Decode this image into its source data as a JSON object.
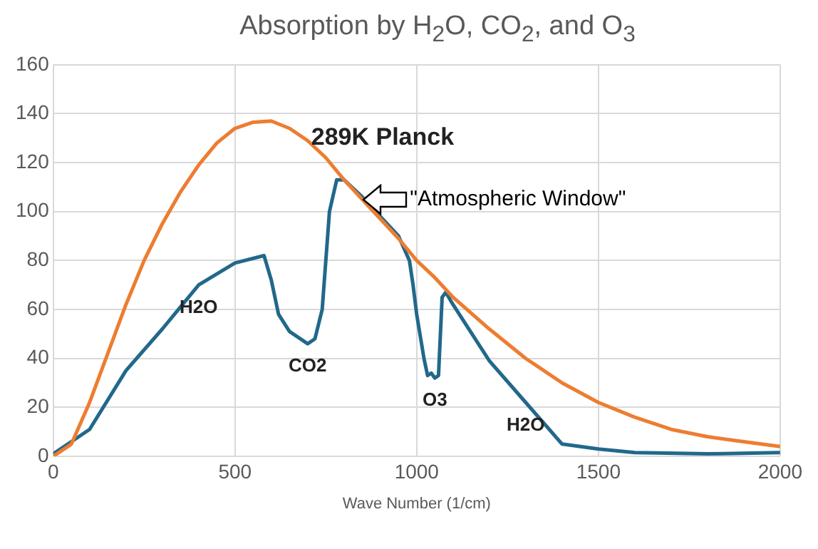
{
  "chart_data": {
    "type": "line",
    "title": "Absorption by H$_{2}$O, CO$_{2}$, and O$_{3}$",
    "xlabel": "Wave Number (1/cm)",
    "xlim": [
      0,
      2000
    ],
    "xticks": [
      0,
      500,
      1000,
      1500,
      2000
    ],
    "ylim": [
      0,
      160
    ],
    "yticks": [
      0,
      20,
      40,
      60,
      80,
      100,
      120,
      140,
      160
    ],
    "grid": true,
    "legend": false,
    "marker": "none",
    "line_style": "solid",
    "series": [
      {
        "name": "289K Planck",
        "color": "#ed7d31",
        "x": [
          0,
          50,
          100,
          150,
          200,
          250,
          300,
          350,
          400,
          450,
          500,
          550,
          600,
          650,
          700,
          750,
          800,
          850,
          900,
          950,
          1000,
          1050,
          1100,
          1200,
          1300,
          1400,
          1500,
          1600,
          1700,
          1800,
          1900,
          2000
        ],
        "values": [
          0,
          5,
          22,
          42,
          62,
          80,
          95,
          108,
          119,
          128,
          134,
          136.5,
          137,
          134,
          129,
          122,
          113,
          105,
          97,
          89,
          80,
          73,
          65,
          52,
          40,
          30,
          22,
          16,
          11,
          8,
          6,
          4
        ]
      },
      {
        "color": "#22688a",
        "x": [
          0,
          100,
          200,
          300,
          400,
          500,
          580,
          600,
          620,
          650,
          700,
          720,
          740,
          760,
          780,
          800,
          850,
          900,
          950,
          980,
          990,
          1000,
          1020,
          1030,
          1040,
          1050,
          1060,
          1070,
          1080,
          1100,
          1200,
          1300,
          1400,
          1500,
          1600,
          1800,
          2000
        ],
        "values": [
          1,
          11,
          35,
          52,
          70,
          79,
          82,
          72,
          58,
          51,
          46,
          48,
          60,
          100,
          113,
          113,
          106,
          98,
          90,
          80,
          70,
          58,
          40,
          33,
          34,
          32,
          33,
          65,
          67,
          62,
          39,
          22,
          5,
          3,
          1.5,
          1,
          1.5
        ]
      }
    ],
    "annotations": [
      {
        "text": "H2O",
        "x": 400,
        "y": 70
      },
      {
        "text": "CO2",
        "x": 700,
        "y": 46
      },
      {
        "text": "O3",
        "x": 1050,
        "y": 32
      },
      {
        "text": "H2O",
        "x": 1300,
        "y": 22
      },
      {
        "text": "\"Atmospheric Window\"",
        "x": 848,
        "y": 105
      }
    ]
  }
}
